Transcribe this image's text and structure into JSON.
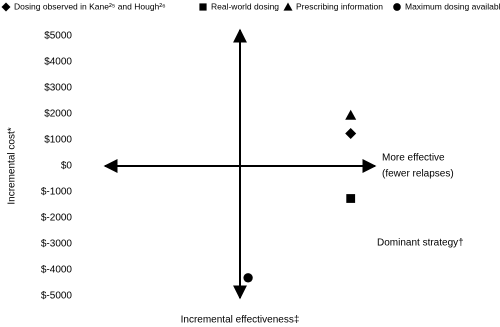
{
  "chart_data": {
    "type": "scatter",
    "y_label": "Incremental cost*",
    "x_label": "Incremental effectiveness‡",
    "annotations": [
      "More effective",
      "(fewer relapses)",
      "Dominant strategy†"
    ],
    "xlim": [
      -1,
      1
    ],
    "ylim": [
      -5000,
      5000
    ],
    "yticks": [
      {
        "value": 5000,
        "label": "$5000"
      },
      {
        "value": 4000,
        "label": "$4000"
      },
      {
        "value": 3000,
        "label": "$3000"
      },
      {
        "value": 2000,
        "label": "$2000"
      },
      {
        "value": 1000,
        "label": "$1000"
      },
      {
        "value": 0,
        "label": "$0"
      },
      {
        "value": -1000,
        "label": "$-1000"
      },
      {
        "value": -2000,
        "label": "$-2000"
      },
      {
        "value": -3000,
        "label": "$-3000"
      },
      {
        "value": -4000,
        "label": "$-4000"
      },
      {
        "value": -5000,
        "label": "$-5000"
      }
    ],
    "series": [
      {
        "name": "Dosing observed in Kane²⁵ and Hough²⁶",
        "marker": "diamond",
        "color": "#000000",
        "x": [
          0.82
        ],
        "values": [
          1250
        ]
      },
      {
        "name": "Real-world dosing",
        "marker": "square",
        "color": "#000000",
        "x": [
          0.82
        ],
        "values": [
          -1250
        ]
      },
      {
        "name": "Prescribing information",
        "marker": "triangle",
        "color": "#000000",
        "x": [
          0.82
        ],
        "values": [
          1950
        ]
      },
      {
        "name": "Maximum dosing available",
        "marker": "circle",
        "color": "#000000",
        "x": [
          0.06
        ],
        "values": [
          -4300
        ]
      }
    ]
  }
}
